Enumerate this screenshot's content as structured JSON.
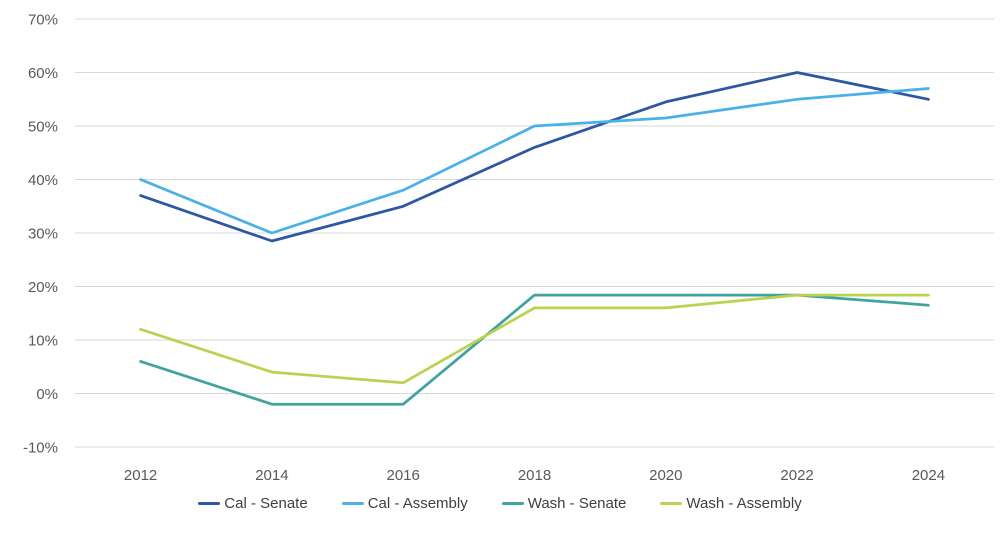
{
  "chart_data": {
    "type": "line",
    "title": "",
    "xlabel": "",
    "ylabel": "",
    "x": [
      "2012",
      "2014",
      "2016",
      "2018",
      "2020",
      "2022",
      "2024"
    ],
    "series": [
      {
        "name": "Cal - Senate",
        "color": "#2D57A3",
        "values": [
          37,
          28.5,
          35,
          46,
          54.5,
          60,
          55
        ]
      },
      {
        "name": "Cal - Assembly",
        "color": "#4AB1E8",
        "values": [
          40,
          30,
          38,
          50,
          51.5,
          55,
          57
        ]
      },
      {
        "name": "Wash - Senate",
        "color": "#41A3A0",
        "values": [
          6,
          -2,
          -2,
          18.4,
          18.4,
          18.4,
          16.5
        ]
      },
      {
        "name": "Wash - Assembly",
        "color": "#BCD24E",
        "values": [
          12,
          4,
          2,
          16,
          16,
          18.4,
          18.4
        ]
      }
    ],
    "ylim": [
      -10,
      70
    ],
    "yticks": [
      70,
      60,
      50,
      40,
      30,
      20,
      10,
      0,
      -10
    ],
    "ytick_labels": [
      "70%",
      "60%",
      "50%",
      "40%",
      "30%",
      "20%",
      "10%",
      "0%",
      "-10%"
    ],
    "grid": "horizontal",
    "gridline_color": "#D9D9D9",
    "tick_label_color": "#595959",
    "legend_position": "bottom",
    "legend_labels": [
      "Cal - Senate",
      "Cal - Assembly",
      "Wash - Senate",
      "Wash - Assembly"
    ]
  }
}
